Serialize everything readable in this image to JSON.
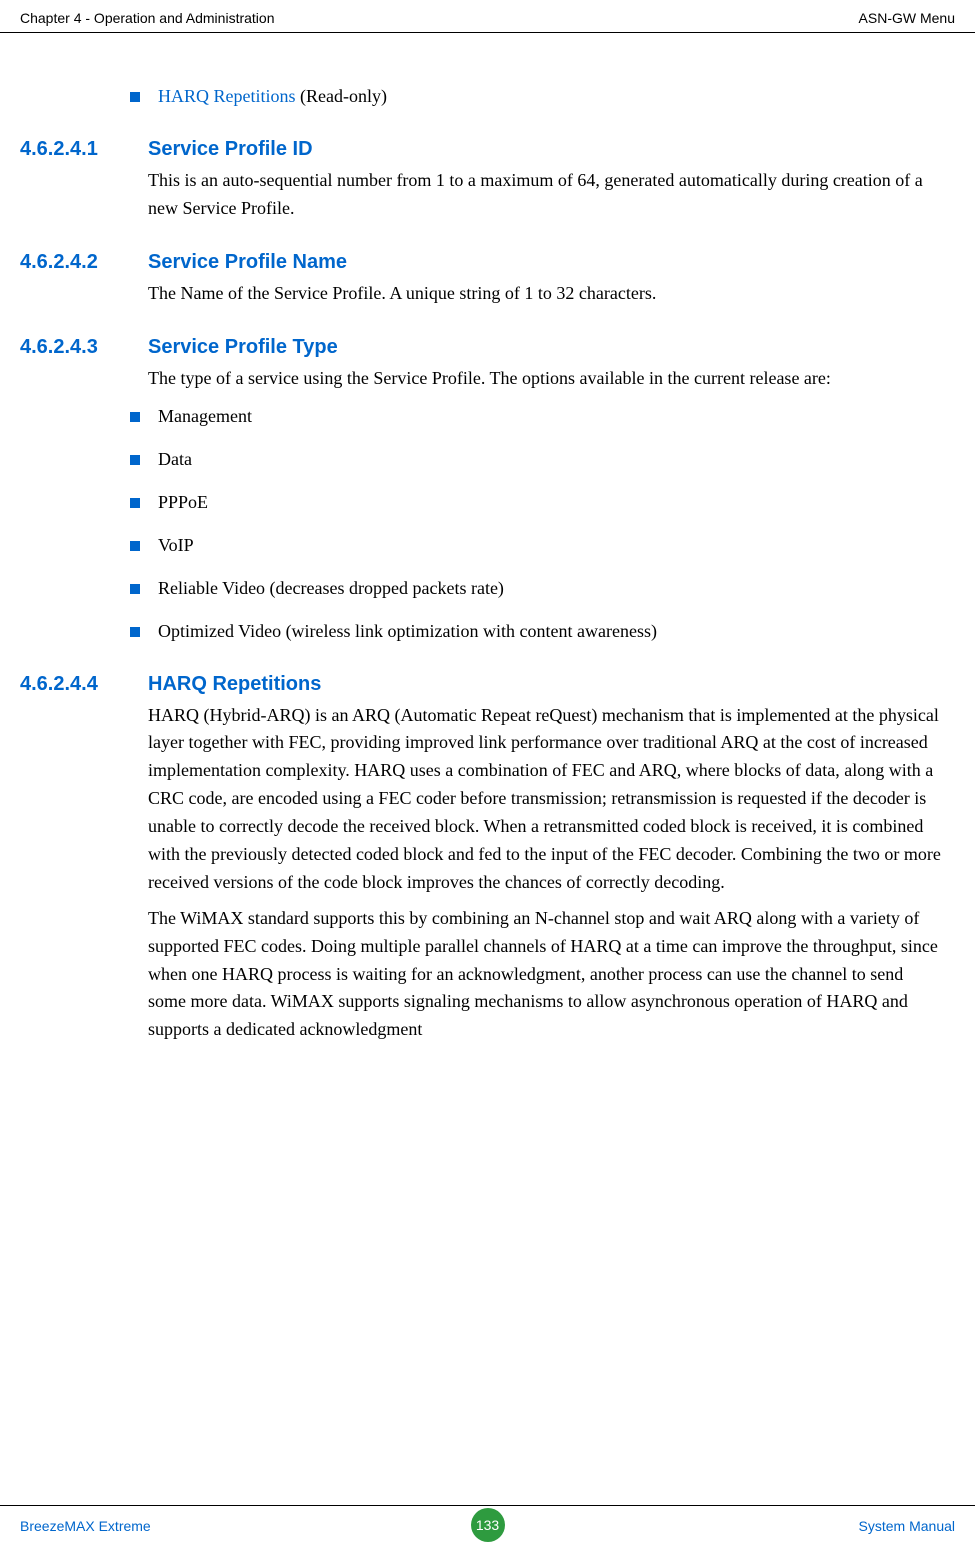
{
  "header": {
    "left": "Chapter 4 - Operation and Administration",
    "right": "ASN-GW Menu"
  },
  "intro_bullet": {
    "link": "HARQ Repetitions",
    "suffix": " (Read-only)"
  },
  "sections": {
    "s1": {
      "num": "4.6.2.4.1",
      "title": "Service Profile ID",
      "body": "This is an auto-sequential number from 1 to a maximum of 64, generated automatically during creation of a new Service Profile."
    },
    "s2": {
      "num": "4.6.2.4.2",
      "title": "Service Profile Name",
      "body": "The Name of the Service Profile. A unique string of 1 to 32 characters."
    },
    "s3": {
      "num": "4.6.2.4.3",
      "title": "Service Profile Type",
      "body": "The type of a service using the Service Profile. The options available in the current release are:",
      "bullets": {
        "b1": "Management",
        "b2": "Data",
        "b3": "PPPoE",
        "b4": "VoIP",
        "b5": "Reliable Video (decreases dropped packets rate)",
        "b6": "Optimized Video (wireless link optimization with content awareness)"
      }
    },
    "s4": {
      "num": "4.6.2.4.4",
      "title": "HARQ Repetitions",
      "body1": "HARQ (Hybrid-ARQ) is an ARQ (Automatic Repeat reQuest) mechanism that is implemented at the physical layer together with FEC, providing improved link performance over traditional ARQ at the cost of increased implementation complexity. HARQ uses a combination of FEC and ARQ, where blocks of data, along with a CRC code, are encoded using a FEC coder before transmission; retransmission is requested if the decoder is unable to correctly decode the received block. When a retransmitted coded block is received, it is combined with the previously detected coded block and fed to the input of the FEC decoder. Combining the two or more received versions of the code block improves the chances of correctly decoding.",
      "body2": "The WiMAX standard supports this by combining an N-channel stop and wait ARQ along with a variety of supported FEC codes. Doing multiple parallel channels of HARQ at a time can improve the throughput, since when one HARQ process is waiting for an acknowledgment, another process can use the channel to send some more data. WiMAX supports signaling mechanisms to allow asynchronous operation of HARQ and supports a dedicated acknowledgment"
    }
  },
  "footer": {
    "left": "BreezeMAX Extreme",
    "page": "133",
    "right": "System Manual"
  }
}
